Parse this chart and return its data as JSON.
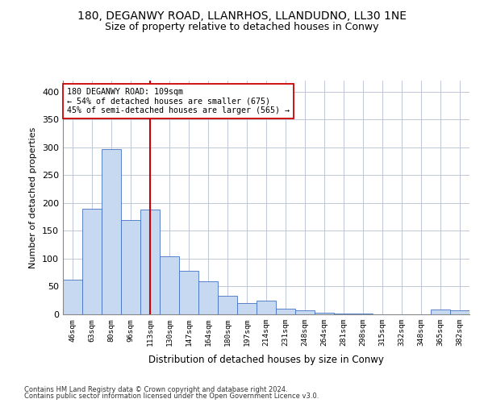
{
  "title_line1": "180, DEGANWY ROAD, LLANRHOS, LLANDUDNO, LL30 1NE",
  "title_line2": "Size of property relative to detached houses in Conwy",
  "xlabel": "Distribution of detached houses by size in Conwy",
  "ylabel": "Number of detached properties",
  "footer_line1": "Contains HM Land Registry data © Crown copyright and database right 2024.",
  "footer_line2": "Contains public sector information licensed under the Open Government Licence v3.0.",
  "bin_labels": [
    "46sqm",
    "63sqm",
    "80sqm",
    "96sqm",
    "113sqm",
    "130sqm",
    "147sqm",
    "164sqm",
    "180sqm",
    "197sqm",
    "214sqm",
    "231sqm",
    "248sqm",
    "264sqm",
    "281sqm",
    "298sqm",
    "315sqm",
    "332sqm",
    "348sqm",
    "365sqm",
    "382sqm"
  ],
  "bar_values": [
    63,
    190,
    297,
    170,
    188,
    105,
    78,
    60,
    33,
    21,
    25,
    10,
    7,
    3,
    2,
    1,
    0,
    0,
    0,
    8,
    7
  ],
  "bar_color": "#c6d9f0",
  "bar_edge_color": "#4472c4",
  "vline_x": 4,
  "vline_color": "#cc0000",
  "annotation_text": "180 DEGANWY ROAD: 109sqm\n← 54% of detached houses are smaller (675)\n45% of semi-detached houses are larger (565) →",
  "annotation_box_color": "#ffffff",
  "annotation_box_edge": "#cc0000",
  "ylim": [
    0,
    420
  ],
  "yticks": [
    0,
    50,
    100,
    150,
    200,
    250,
    300,
    350,
    400
  ],
  "background_color": "#ffffff",
  "grid_color": "#c0c8d8"
}
